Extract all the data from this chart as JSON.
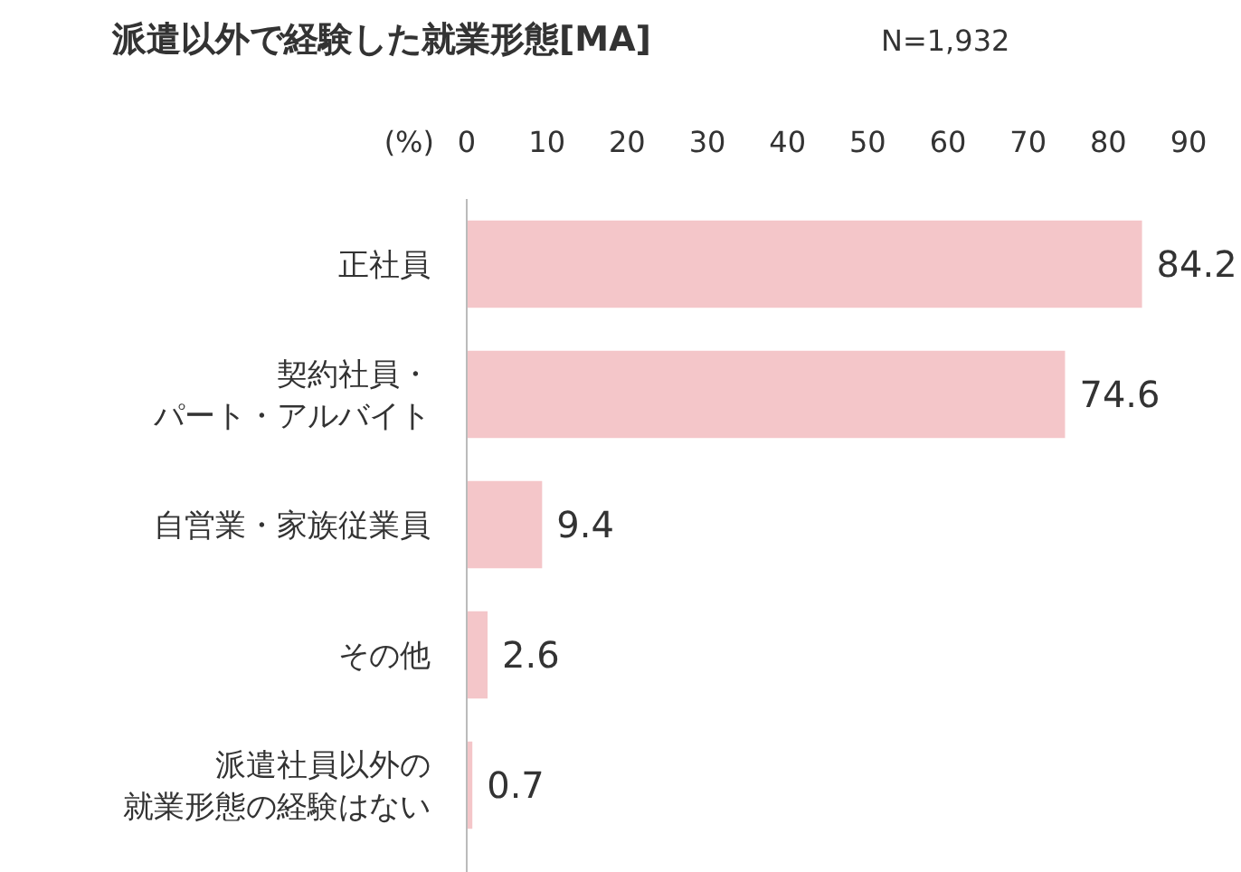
{
  "chart_data": {
    "type": "bar",
    "orientation": "horizontal",
    "title": "派遣以外で経験した就業形態[MA]",
    "subtitle": "N=1,932",
    "xlabel": "(%)",
    "categories": [
      "正社員",
      "契約社員・パート・アルバイト",
      "自営業・家族従業員",
      "その他",
      "派遣社員以外の就業形態の経験はない"
    ],
    "values": [
      84.2,
      74.6,
      9.4,
      2.6,
      0.7
    ],
    "color": "#f4c6c9",
    "xlim": [
      0,
      90
    ],
    "xticks": [
      0,
      10,
      20,
      30,
      40,
      50,
      60,
      70,
      80,
      90
    ],
    "data_labels": true,
    "grid": false
  }
}
